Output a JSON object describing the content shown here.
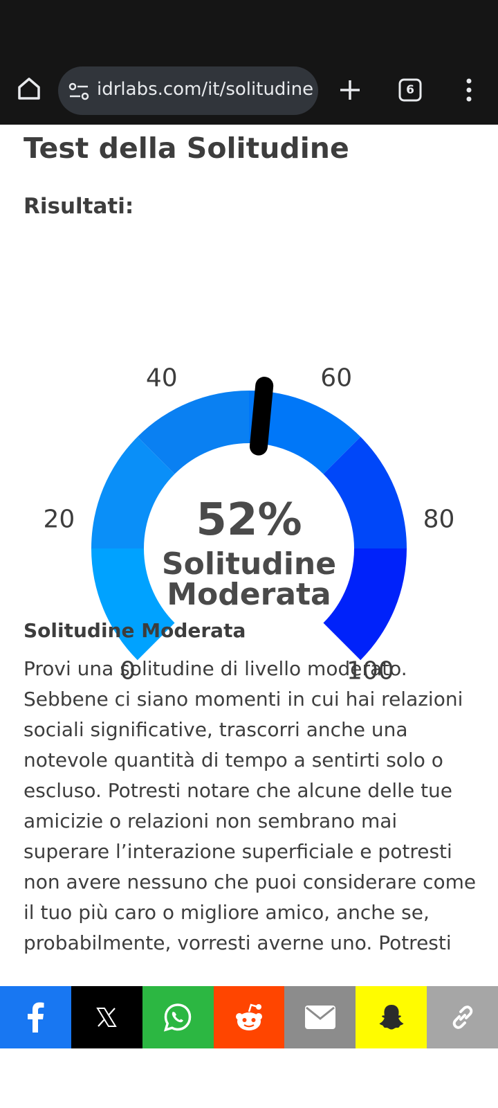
{
  "browser": {
    "url": "idrlabs.com/it/solitudine",
    "tab_count": "6",
    "icons": [
      "home-icon",
      "site-settings-icon",
      "plus-icon",
      "tabs-icon",
      "more-vert-icon"
    ]
  },
  "page": {
    "title": "Test della Solitudine",
    "results_label": "Risultati:"
  },
  "gauge": {
    "value": 52,
    "min": 0,
    "max": 100,
    "percent_label": "52%",
    "result_line1": "Solitudine",
    "result_line2": "Moderata",
    "ticks": [
      "0",
      "20",
      "40",
      "60",
      "80",
      "100"
    ],
    "segment_colors": [
      "#00a2ff",
      "#0a8ff8",
      "#0a80f2",
      "#0077f8",
      "#0047f9",
      "#0022fa"
    ]
  },
  "section": {
    "heading": "Solitudine Moderata",
    "text": "Provi una solitudine di livello moderato. Sebbene ci siano momenti in cui hai relazioni sociali significative, trascorri anche una notevole quantità di tempo a sentirti solo o escluso. Potresti notare che alcune delle tue amicizie o relazioni non sembrano mai superare l’interazione superficiale e potresti non avere nessuno che puoi considerare come il tuo più caro o migliore amico, anche se, probabilmente, vorresti averne uno. Potresti"
  },
  "share": [
    {
      "name": "facebook",
      "icon": "facebook-icon",
      "color": "#1877f2"
    },
    {
      "name": "x",
      "icon": "x-icon",
      "color": "#000000"
    },
    {
      "name": "whatsapp",
      "icon": "whatsapp-icon",
      "color": "#2cb742"
    },
    {
      "name": "reddit",
      "icon": "reddit-icon",
      "color": "#ff4500"
    },
    {
      "name": "email",
      "icon": "email-icon",
      "color": "#8c8c8c"
    },
    {
      "name": "snapchat",
      "icon": "snapchat-icon",
      "color": "#fffc00"
    },
    {
      "name": "copy-link",
      "icon": "link-icon",
      "color": "#a6a6a6"
    }
  ]
}
